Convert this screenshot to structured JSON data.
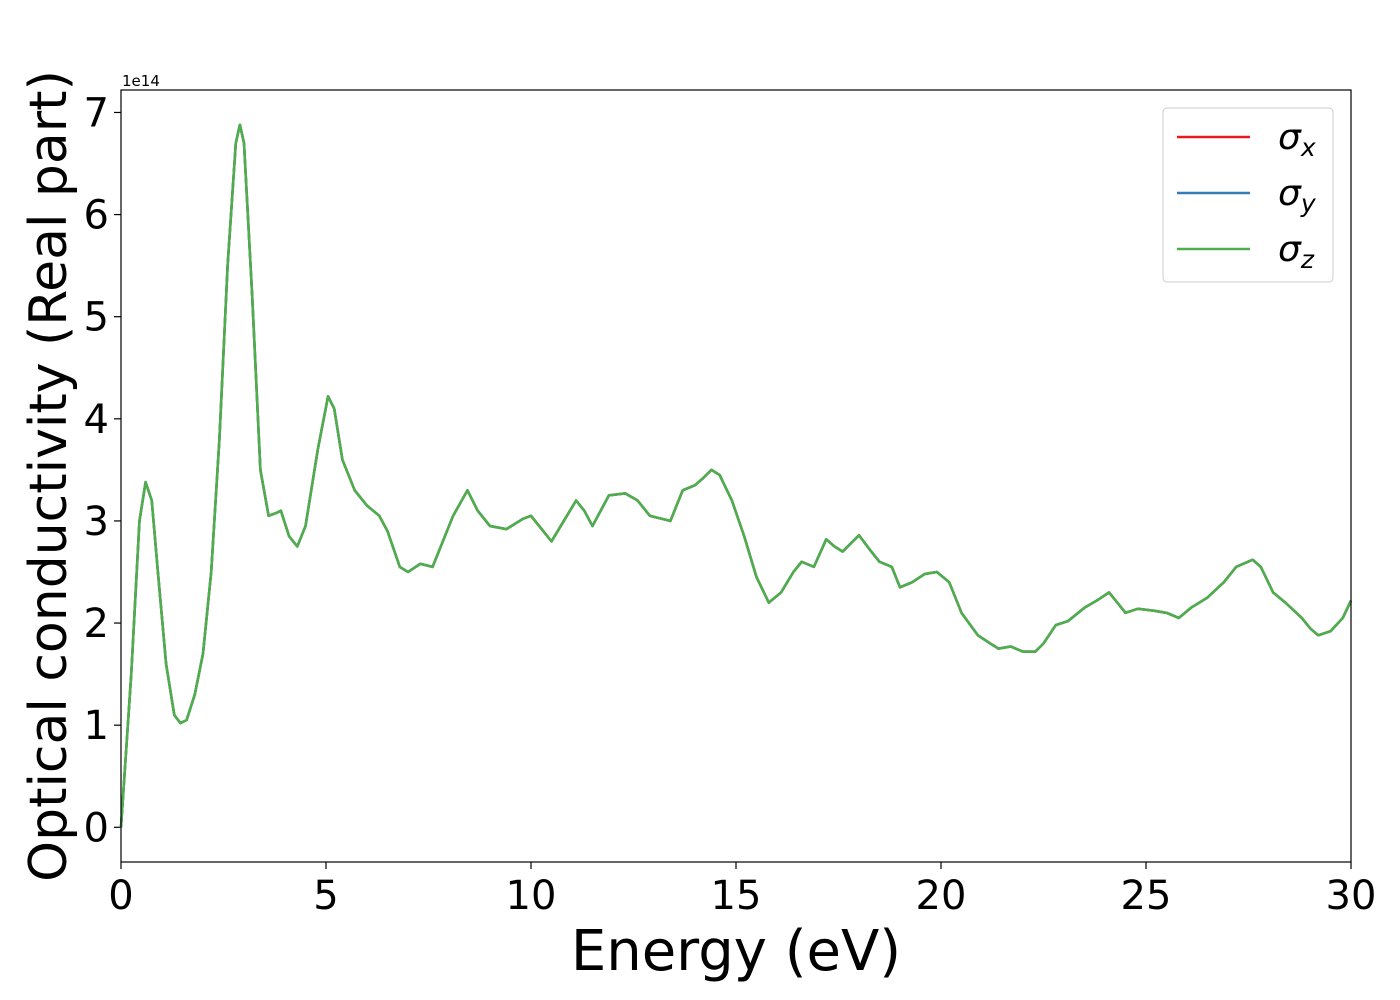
{
  "chart_data": {
    "type": "line",
    "x_label": "Energy (eV)",
    "y_label": "Optical conductivity (Real part)",
    "y_offset_label": "1e14",
    "xlim": [
      0,
      30
    ],
    "xticks": [
      0,
      5,
      10,
      15,
      20,
      25,
      30
    ],
    "ylim": [
      -0.34,
      7.22
    ],
    "yticks": [
      0,
      1,
      2,
      3,
      4,
      5,
      6,
      7
    ],
    "legend": "upper right",
    "x": [
      0,
      0.25,
      0.45,
      0.6,
      0.75,
      0.9,
      1.1,
      1.3,
      1.45,
      1.6,
      1.8,
      2.0,
      2.2,
      2.4,
      2.6,
      2.8,
      2.9,
      3.0,
      3.2,
      3.4,
      3.6,
      3.8,
      3.9,
      4.1,
      4.3,
      4.5,
      4.8,
      5.05,
      5.2,
      5.4,
      5.7,
      6.0,
      6.3,
      6.5,
      6.8,
      7.0,
      7.3,
      7.6,
      7.8,
      8.1,
      8.45,
      8.7,
      9.0,
      9.4,
      9.8,
      10.0,
      10.2,
      10.5,
      10.8,
      11.1,
      11.3,
      11.5,
      11.7,
      11.9,
      12.3,
      12.6,
      12.9,
      13.4,
      13.7,
      14.0,
      14.2,
      14.4,
      14.6,
      14.9,
      15.2,
      15.5,
      15.8,
      16.1,
      16.4,
      16.6,
      16.9,
      17.2,
      17.4,
      17.6,
      18.0,
      18.3,
      18.5,
      18.8,
      19.0,
      19.3,
      19.6,
      19.9,
      20.2,
      20.5,
      20.9,
      21.2,
      21.4,
      21.7,
      22.0,
      22.3,
      22.5,
      22.8,
      23.1,
      23.5,
      23.8,
      24.1,
      24.3,
      24.5,
      24.8,
      25.2,
      25.5,
      25.8,
      26.1,
      26.5,
      26.9,
      27.2,
      27.6,
      27.8,
      28.1,
      28.4,
      28.8,
      29.0,
      29.2,
      29.5,
      29.8,
      30.0
    ],
    "series": [
      {
        "name": "σx",
        "color": "#e41a1c",
        "values": [
          0,
          1.5,
          3.0,
          3.38,
          3.2,
          2.5,
          1.6,
          1.1,
          1.02,
          1.05,
          1.3,
          1.7,
          2.5,
          3.8,
          5.5,
          6.7,
          6.88,
          6.7,
          5.2,
          3.5,
          3.05,
          3.08,
          3.1,
          2.85,
          2.75,
          2.95,
          3.7,
          4.22,
          4.1,
          3.6,
          3.3,
          3.15,
          3.05,
          2.9,
          2.55,
          2.5,
          2.58,
          2.55,
          2.75,
          3.05,
          3.3,
          3.1,
          2.95,
          2.92,
          3.02,
          3.05,
          2.95,
          2.8,
          3.0,
          3.2,
          3.1,
          2.95,
          3.1,
          3.25,
          3.27,
          3.2,
          3.05,
          3.0,
          3.3,
          3.35,
          3.42,
          3.5,
          3.45,
          3.2,
          2.85,
          2.45,
          2.2,
          2.3,
          2.5,
          2.6,
          2.55,
          2.82,
          2.75,
          2.7,
          2.86,
          2.7,
          2.6,
          2.55,
          2.35,
          2.4,
          2.48,
          2.5,
          2.4,
          2.1,
          1.88,
          1.8,
          1.75,
          1.77,
          1.72,
          1.72,
          1.8,
          1.98,
          2.02,
          2.15,
          2.22,
          2.3,
          2.2,
          2.1,
          2.14,
          2.12,
          2.1,
          2.05,
          2.15,
          2.25,
          2.4,
          2.55,
          2.62,
          2.55,
          2.3,
          2.2,
          2.05,
          1.95,
          1.88,
          1.92,
          2.05,
          2.22
        ]
      },
      {
        "name": "σy",
        "color": "#377eb8",
        "values": [
          0,
          1.5,
          3.0,
          3.38,
          3.2,
          2.5,
          1.6,
          1.1,
          1.02,
          1.05,
          1.3,
          1.7,
          2.5,
          3.8,
          5.5,
          6.7,
          6.88,
          6.7,
          5.2,
          3.5,
          3.05,
          3.08,
          3.1,
          2.85,
          2.75,
          2.95,
          3.7,
          4.22,
          4.1,
          3.6,
          3.3,
          3.15,
          3.05,
          2.9,
          2.55,
          2.5,
          2.58,
          2.55,
          2.75,
          3.05,
          3.3,
          3.1,
          2.95,
          2.92,
          3.02,
          3.05,
          2.95,
          2.8,
          3.0,
          3.2,
          3.1,
          2.95,
          3.1,
          3.25,
          3.27,
          3.2,
          3.05,
          3.0,
          3.3,
          3.35,
          3.42,
          3.5,
          3.45,
          3.2,
          2.85,
          2.45,
          2.2,
          2.3,
          2.5,
          2.6,
          2.55,
          2.82,
          2.75,
          2.7,
          2.86,
          2.7,
          2.6,
          2.55,
          2.35,
          2.4,
          2.48,
          2.5,
          2.4,
          2.1,
          1.88,
          1.8,
          1.75,
          1.77,
          1.72,
          1.72,
          1.8,
          1.98,
          2.02,
          2.15,
          2.22,
          2.3,
          2.2,
          2.1,
          2.14,
          2.12,
          2.1,
          2.05,
          2.15,
          2.25,
          2.4,
          2.55,
          2.62,
          2.55,
          2.3,
          2.2,
          2.05,
          1.95,
          1.88,
          1.92,
          2.05,
          2.22
        ]
      },
      {
        "name": "σz",
        "color": "#4daf4a",
        "values": [
          0,
          1.5,
          3.0,
          3.38,
          3.2,
          2.5,
          1.6,
          1.1,
          1.02,
          1.05,
          1.3,
          1.7,
          2.5,
          3.8,
          5.5,
          6.7,
          6.88,
          6.7,
          5.2,
          3.5,
          3.05,
          3.08,
          3.1,
          2.85,
          2.75,
          2.95,
          3.7,
          4.22,
          4.1,
          3.6,
          3.3,
          3.15,
          3.05,
          2.9,
          2.55,
          2.5,
          2.58,
          2.55,
          2.75,
          3.05,
          3.3,
          3.1,
          2.95,
          2.92,
          3.02,
          3.05,
          2.95,
          2.8,
          3.0,
          3.2,
          3.1,
          2.95,
          3.1,
          3.25,
          3.27,
          3.2,
          3.05,
          3.0,
          3.3,
          3.35,
          3.42,
          3.5,
          3.45,
          3.2,
          2.85,
          2.45,
          2.2,
          2.3,
          2.5,
          2.6,
          2.55,
          2.82,
          2.75,
          2.7,
          2.86,
          2.7,
          2.6,
          2.55,
          2.35,
          2.4,
          2.48,
          2.5,
          2.4,
          2.1,
          1.88,
          1.8,
          1.75,
          1.77,
          1.72,
          1.72,
          1.8,
          1.98,
          2.02,
          2.15,
          2.22,
          2.3,
          2.2,
          2.1,
          2.14,
          2.12,
          2.1,
          2.05,
          2.15,
          2.25,
          2.4,
          2.55,
          2.62,
          2.55,
          2.3,
          2.2,
          2.05,
          1.95,
          1.88,
          1.92,
          2.05,
          2.22
        ]
      }
    ]
  }
}
